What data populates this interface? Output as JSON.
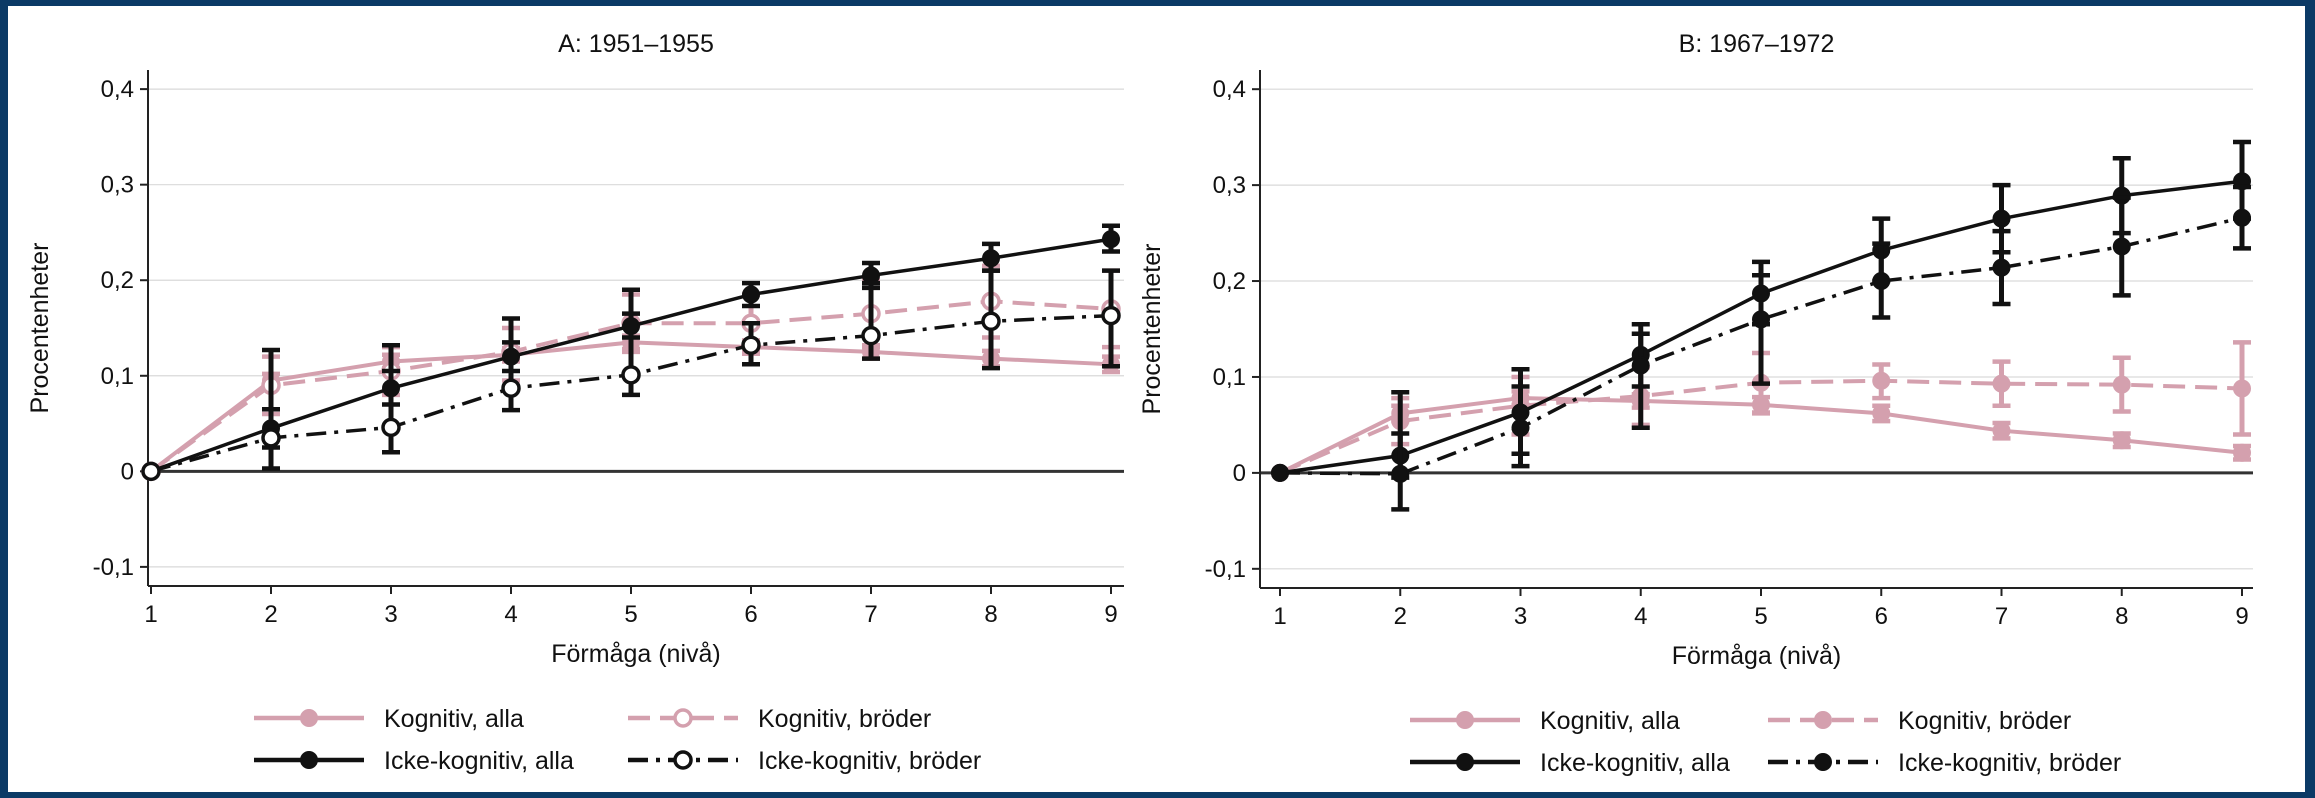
{
  "chart_data": [
    {
      "type": "line",
      "title": "A: 1951–1955",
      "xlabel": "Förmåga (nivå)",
      "ylabel": "Procentenheter",
      "x": [
        1,
        2,
        3,
        4,
        5,
        6,
        7,
        8,
        9
      ],
      "xticks": [
        "1",
        "2",
        "3",
        "4",
        "5",
        "6",
        "7",
        "8",
        "9"
      ],
      "ylim": [
        -0.12,
        0.42
      ],
      "yticks": [
        -0.1,
        0,
        0.1,
        0.2,
        0.3,
        0.4
      ],
      "ytick_labels": [
        "-0,1",
        "0",
        "0,1",
        "0,2",
        "0,3",
        "0,4"
      ],
      "grid": true,
      "legend_position": "bottom",
      "series": [
        {
          "name": "Kognitiv, alla",
          "color": "#d4a0ae",
          "dash": "solid",
          "marker": "filled",
          "values": [
            0,
            0.095,
            0.115,
            0.122,
            0.135,
            0.13,
            0.125,
            0.118,
            0.112
          ],
          "ci_low": [
            0,
            0.088,
            0.108,
            0.115,
            0.128,
            0.123,
            0.118,
            0.11,
            0.104
          ],
          "ci_high": [
            0,
            0.102,
            0.122,
            0.129,
            0.142,
            0.137,
            0.132,
            0.126,
            0.12
          ]
        },
        {
          "name": "Kognitiv, bröder",
          "color": "#d4a0ae",
          "dash": "dash",
          "marker": "hollow",
          "values": [
            0,
            0.09,
            0.105,
            0.125,
            0.155,
            0.155,
            0.165,
            0.178,
            0.17
          ],
          "ci_low": [
            0,
            0.06,
            0.08,
            0.095,
            0.125,
            0.125,
            0.13,
            0.14,
            0.13
          ],
          "ci_high": [
            0,
            0.12,
            0.13,
            0.15,
            0.185,
            0.185,
            0.2,
            0.215,
            0.21
          ]
        },
        {
          "name": "Icke-kognitiv, alla",
          "color": "#111111",
          "dash": "solid",
          "marker": "filled",
          "values": [
            0,
            0.045,
            0.087,
            0.12,
            0.152,
            0.185,
            0.205,
            0.223,
            0.243
          ],
          "ci_low": [
            0,
            0.025,
            0.07,
            0.105,
            0.14,
            0.173,
            0.192,
            0.21,
            0.23
          ],
          "ci_high": [
            0,
            0.065,
            0.105,
            0.135,
            0.165,
            0.197,
            0.218,
            0.238,
            0.257
          ]
        },
        {
          "name": "Icke-kognitiv, bröder",
          "color": "#111111",
          "dash": "dashdot",
          "marker": "hollow",
          "values": [
            0,
            0.035,
            0.046,
            0.087,
            0.101,
            0.132,
            0.142,
            0.157,
            0.163
          ],
          "ci_low": [
            0,
            0.003,
            0.02,
            0.064,
            0.08,
            0.112,
            0.118,
            0.108,
            0.11
          ],
          "ci_high": [
            0,
            0.127,
            0.132,
            0.16,
            0.19,
            0.155,
            0.197,
            0.21,
            0.21
          ]
        }
      ]
    },
    {
      "type": "line",
      "title": "B: 1967–1972",
      "xlabel": "Förmåga (nivå)",
      "ylabel": "Procentenheter",
      "x": [
        1,
        2,
        3,
        4,
        5,
        6,
        7,
        8,
        9
      ],
      "xticks": [
        "1",
        "2",
        "3",
        "4",
        "5",
        "6",
        "7",
        "8",
        "9"
      ],
      "ylim": [
        -0.12,
        0.42
      ],
      "yticks": [
        -0.1,
        0,
        0.1,
        0.2,
        0.3,
        0.4
      ],
      "ytick_labels": [
        "-0,1",
        "0",
        "0,1",
        "0,2",
        "0,3",
        "0,4"
      ],
      "grid": true,
      "legend_position": "bottom",
      "series": [
        {
          "name": "Kognitiv, alla",
          "color": "#d4a0ae",
          "dash": "solid",
          "marker": "filled",
          "values": [
            0,
            0.062,
            0.078,
            0.075,
            0.071,
            0.062,
            0.044,
            0.034,
            0.021
          ],
          "ci_low": [
            0,
            0.054,
            0.071,
            0.068,
            0.063,
            0.054,
            0.036,
            0.027,
            0.014
          ],
          "ci_high": [
            0,
            0.07,
            0.085,
            0.082,
            0.079,
            0.07,
            0.052,
            0.041,
            0.028
          ]
        },
        {
          "name": "Kognitiv, bröder",
          "color": "#d4a0ae",
          "dash": "dash",
          "marker": "filled",
          "values": [
            0,
            0.054,
            0.07,
            0.08,
            0.094,
            0.096,
            0.093,
            0.092,
            0.088
          ],
          "ci_low": [
            0,
            0.03,
            0.04,
            0.05,
            0.062,
            0.078,
            0.07,
            0.064,
            0.04
          ],
          "ci_high": [
            0,
            0.078,
            0.1,
            0.11,
            0.125,
            0.113,
            0.116,
            0.12,
            0.136
          ]
        },
        {
          "name": "Icke-kognitiv, alla",
          "color": "#111111",
          "dash": "solid",
          "marker": "filled",
          "values": [
            0,
            0.018,
            0.063,
            0.123,
            0.187,
            0.232,
            0.265,
            0.289,
            0.304
          ],
          "ci_low": [
            0,
            -0.005,
            0.02,
            0.09,
            0.155,
            0.2,
            0.23,
            0.25,
            0.265
          ],
          "ci_high": [
            0,
            0.041,
            0.108,
            0.155,
            0.22,
            0.265,
            0.3,
            0.328,
            0.345
          ]
        },
        {
          "name": "Icke-kognitiv, bröder",
          "color": "#111111",
          "dash": "dashdot",
          "marker": "filled",
          "values": [
            0,
            -0.001,
            0.047,
            0.112,
            0.16,
            0.2,
            0.214,
            0.236,
            0.266
          ],
          "ci_low": [
            0,
            -0.038,
            0.007,
            0.047,
            0.093,
            0.162,
            0.176,
            0.185,
            0.234
          ],
          "ci_high": [
            0,
            0.084,
            0.09,
            0.145,
            0.206,
            0.239,
            0.252,
            0.287,
            0.298
          ]
        }
      ]
    }
  ]
}
